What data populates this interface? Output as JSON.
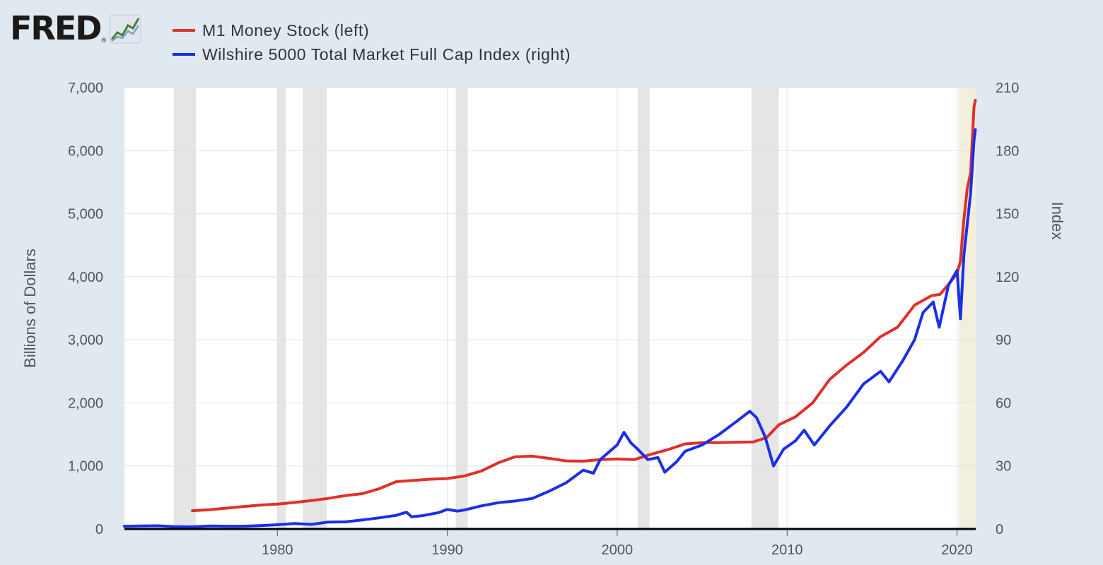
{
  "brand": {
    "name": "FRED",
    "icon": "line-chart-icon"
  },
  "chart_data": {
    "type": "line",
    "title": "",
    "legend_position": "top-left",
    "grid": true,
    "series": [
      {
        "name": "M1 Money Stock (left)",
        "axis": "left",
        "color": "#e0302a",
        "points": [
          [
            1975.0,
            290
          ],
          [
            1976.0,
            305
          ],
          [
            1977.0,
            330
          ],
          [
            1978.0,
            355
          ],
          [
            1979.0,
            380
          ],
          [
            1980.0,
            395
          ],
          [
            1981.0,
            420
          ],
          [
            1982.0,
            450
          ],
          [
            1983.0,
            485
          ],
          [
            1984.0,
            530
          ],
          [
            1985.0,
            560
          ],
          [
            1986.0,
            640
          ],
          [
            1987.0,
            750
          ],
          [
            1988.0,
            770
          ],
          [
            1989.0,
            790
          ],
          [
            1990.0,
            800
          ],
          [
            1991.0,
            840
          ],
          [
            1992.0,
            920
          ],
          [
            1993.0,
            1050
          ],
          [
            1994.0,
            1145
          ],
          [
            1995.0,
            1155
          ],
          [
            1996.0,
            1120
          ],
          [
            1997.0,
            1080
          ],
          [
            1998.0,
            1075
          ],
          [
            1999.0,
            1100
          ],
          [
            2000.0,
            1110
          ],
          [
            2001.0,
            1100
          ],
          [
            2002.0,
            1185
          ],
          [
            2003.0,
            1260
          ],
          [
            2004.0,
            1350
          ],
          [
            2005.0,
            1370
          ],
          [
            2006.0,
            1370
          ],
          [
            2007.0,
            1375
          ],
          [
            2008.0,
            1380
          ],
          [
            2008.8,
            1450
          ],
          [
            2009.5,
            1650
          ],
          [
            2010.5,
            1780
          ],
          [
            2011.5,
            2000
          ],
          [
            2012.5,
            2370
          ],
          [
            2013.5,
            2600
          ],
          [
            2014.5,
            2800
          ],
          [
            2015.5,
            3050
          ],
          [
            2016.5,
            3200
          ],
          [
            2017.5,
            3550
          ],
          [
            2018.5,
            3700
          ],
          [
            2019.0,
            3720
          ],
          [
            2019.5,
            3880
          ],
          [
            2020.0,
            4050
          ],
          [
            2020.2,
            4250
          ],
          [
            2020.4,
            4900
          ],
          [
            2020.6,
            5400
          ],
          [
            2020.8,
            5650
          ],
          [
            2021.0,
            6700
          ],
          [
            2021.08,
            6800
          ]
        ]
      },
      {
        "name": "Wilshire 5000 Total Market Full Cap Index (right)",
        "axis": "right",
        "color": "#1a2fe8",
        "points": [
          [
            1971.0,
            1.3
          ],
          [
            1972.0,
            1.4
          ],
          [
            1973.0,
            1.5
          ],
          [
            1974.0,
            1.1
          ],
          [
            1975.0,
            1.0
          ],
          [
            1976.0,
            1.4
          ],
          [
            1977.0,
            1.3
          ],
          [
            1978.0,
            1.3
          ],
          [
            1979.0,
            1.6
          ],
          [
            1980.0,
            2.0
          ],
          [
            1981.0,
            2.6
          ],
          [
            1982.0,
            2.2
          ],
          [
            1983.0,
            3.3
          ],
          [
            1984.0,
            3.4
          ],
          [
            1985.0,
            4.3
          ],
          [
            1986.0,
            5.3
          ],
          [
            1987.0,
            6.5
          ],
          [
            1987.6,
            8.0
          ],
          [
            1987.9,
            5.8
          ],
          [
            1988.5,
            6.3
          ],
          [
            1989.5,
            7.8
          ],
          [
            1990.0,
            9.3
          ],
          [
            1990.6,
            8.5
          ],
          [
            1991.0,
            9.0
          ],
          [
            1992.0,
            11.0
          ],
          [
            1993.0,
            12.5
          ],
          [
            1994.0,
            13.3
          ],
          [
            1995.0,
            14.5
          ],
          [
            1996.0,
            18.0
          ],
          [
            1997.0,
            22.0
          ],
          [
            1998.0,
            28.0
          ],
          [
            1998.6,
            26.5
          ],
          [
            1999.0,
            33.0
          ],
          [
            2000.0,
            40.0
          ],
          [
            2000.4,
            46.0
          ],
          [
            2000.8,
            41.0
          ],
          [
            2001.2,
            38.0
          ],
          [
            2001.8,
            33.0
          ],
          [
            2002.4,
            34.0
          ],
          [
            2002.8,
            27.0
          ],
          [
            2003.5,
            32.0
          ],
          [
            2004.0,
            37.0
          ],
          [
            2005.0,
            40.0
          ],
          [
            2006.0,
            45.0
          ],
          [
            2007.0,
            51.0
          ],
          [
            2007.8,
            56.0
          ],
          [
            2008.2,
            53.0
          ],
          [
            2008.7,
            44.0
          ],
          [
            2009.2,
            30.0
          ],
          [
            2009.8,
            38.0
          ],
          [
            2010.5,
            42.0
          ],
          [
            2011.0,
            47.0
          ],
          [
            2011.6,
            40.0
          ],
          [
            2012.5,
            49.0
          ],
          [
            2013.5,
            58.0
          ],
          [
            2014.5,
            69.0
          ],
          [
            2015.5,
            75.0
          ],
          [
            2016.0,
            70.0
          ],
          [
            2016.8,
            80.0
          ],
          [
            2017.5,
            90.0
          ],
          [
            2018.0,
            103.0
          ],
          [
            2018.6,
            108.0
          ],
          [
            2018.95,
            96.0
          ],
          [
            2019.5,
            116.0
          ],
          [
            2020.0,
            123.0
          ],
          [
            2020.2,
            100.0
          ],
          [
            2020.4,
            130.0
          ],
          [
            2020.6,
            145.0
          ],
          [
            2020.8,
            160.0
          ],
          [
            2021.0,
            185.0
          ],
          [
            2021.08,
            190.0
          ]
        ]
      }
    ],
    "recessions": [
      [
        1973.9,
        1975.2
      ],
      [
        1980.0,
        1980.5
      ],
      [
        1981.5,
        1982.9
      ],
      [
        1990.5,
        1991.2
      ],
      [
        2001.2,
        2001.9
      ],
      [
        2007.9,
        2009.5
      ]
    ],
    "highlight_band": [
      2020.1,
      2021.1
    ],
    "x_axis": {
      "min": 1971,
      "max": 2021.1,
      "ticks": [
        1980,
        1990,
        2000,
        2010,
        2020
      ]
    },
    "y_left": {
      "label": "Billions of Dollars",
      "min": 0,
      "max": 7000,
      "ticks": [
        0,
        1000,
        2000,
        3000,
        4000,
        5000,
        6000,
        7000
      ],
      "tick_labels": [
        "0",
        "1,000",
        "2,000",
        "3,000",
        "4,000",
        "5,000",
        "6,000",
        "7,000"
      ]
    },
    "y_right": {
      "label": "Index",
      "min": 0,
      "max": 210,
      "ticks": [
        0,
        30,
        60,
        90,
        120,
        150,
        180,
        210
      ],
      "tick_labels": [
        "0",
        "30",
        "60",
        "90",
        "120",
        "150",
        "180",
        "210"
      ]
    }
  }
}
